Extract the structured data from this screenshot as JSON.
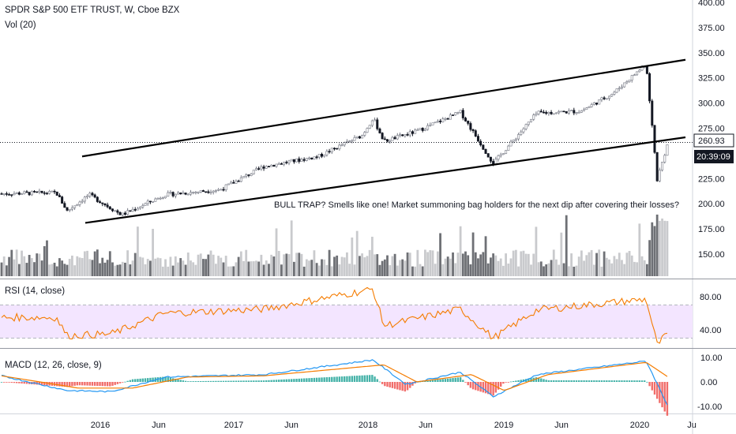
{
  "header": {
    "symbol_line": "SPDR S&P 500 ETF TRUST, W, Cboe BZX",
    "volume_label": "Vol (20)"
  },
  "annotation": "BULL TRAP? Smells like one! Market summoning bag holders for the next dip after covering their losses?",
  "price_tags": {
    "last_price": "260.93",
    "countdown": "20:39:09"
  },
  "rsi": {
    "label": "RSI (14, close)",
    "upper_band": 70,
    "lower_band": 30
  },
  "macd": {
    "label": "MACD (12, 26, close, 9)"
  },
  "colors": {
    "price_up": "#787b86",
    "price_down": "#131722",
    "channel": "#000000",
    "rsi_line": "#f57c00",
    "rsi_band_fill": "#f3e5ff",
    "macd_line": "#2196f3",
    "signal_line": "#f57c00",
    "hist_pos": "#26a69a",
    "hist_neg": "#ef5350",
    "volume_dark": "#6e7075",
    "volume_light": "#c9cacd"
  },
  "chart_data": {
    "type": "candlestick",
    "x_ticks": [
      "2016",
      "Jun",
      "2017",
      "Jun",
      "2018",
      "Jun",
      "2019",
      "Jun",
      "2020",
      "Ju"
    ],
    "price_axis": {
      "ticks": [
        "400.00",
        "375.00",
        "350.00",
        "325.00",
        "300.00",
        "275.00",
        "250.00",
        "225.00",
        "200.00",
        "175.00",
        "150.00"
      ],
      "ylim": [
        125,
        400
      ]
    },
    "horizontal_line": 260.93,
    "channel": {
      "upper": [
        [
          "2016-01",
          247
        ],
        [
          "2020-04",
          343
        ]
      ],
      "lower": [
        [
          "2016-01",
          181
        ],
        [
          "2020-04",
          266
        ]
      ]
    },
    "price_path": [
      [
        "2015-03",
        210
      ],
      [
        "2015-08",
        211
      ],
      [
        "2015-09",
        193
      ],
      [
        "2015-11",
        209
      ],
      [
        "2016-02",
        189
      ],
      [
        "2016-06",
        209
      ],
      [
        "2016-11",
        214
      ],
      [
        "2017-03",
        237
      ],
      [
        "2017-08",
        247
      ],
      [
        "2017-12",
        268
      ],
      [
        "2018-01",
        285
      ],
      [
        "2018-02",
        262
      ],
      [
        "2018-05",
        272
      ],
      [
        "2018-09",
        291
      ],
      [
        "2018-12",
        240
      ],
      [
        "2019-04",
        290
      ],
      [
        "2019-08",
        292
      ],
      [
        "2019-11",
        310
      ],
      [
        "2020-02",
        339
      ],
      [
        "2020-03",
        224
      ],
      [
        "2020-04",
        261
      ]
    ],
    "rsi_axis": {
      "ticks": [
        "80.00",
        "40.00"
      ],
      "ylim": [
        10,
        95
      ]
    },
    "rsi_path": [
      [
        "2015-03",
        55
      ],
      [
        "2015-08",
        55
      ],
      [
        "2015-09",
        33
      ],
      [
        "2016-01",
        35
      ],
      [
        "2016-06",
        60
      ],
      [
        "2017-03",
        65
      ],
      [
        "2018-01",
        89
      ],
      [
        "2018-02",
        45
      ],
      [
        "2018-09",
        65
      ],
      [
        "2018-12",
        30
      ],
      [
        "2019-04",
        64
      ],
      [
        "2020-02",
        77
      ],
      [
        "2020-03",
        22
      ],
      [
        "2020-04",
        36
      ]
    ],
    "macd_axis": {
      "ticks": [
        "10.00",
        "0.00",
        "-10.00"
      ],
      "ylim": [
        -12,
        12
      ]
    },
    "macd_path": [
      [
        "2015-03",
        2.5
      ],
      [
        "2015-09",
        -3.5
      ],
      [
        "2016-01",
        -4
      ],
      [
        "2016-06",
        2
      ],
      [
        "2017-03",
        3
      ],
      [
        "2018-01",
        9
      ],
      [
        "2018-04",
        -1
      ],
      [
        "2018-09",
        4
      ],
      [
        "2018-12",
        -6
      ],
      [
        "2019-04",
        3
      ],
      [
        "2020-02",
        8.5
      ],
      [
        "2020-04",
        -10
      ]
    ],
    "signal_path": [
      [
        "2015-03",
        2.5
      ],
      [
        "2015-10",
        -2.5
      ],
      [
        "2016-03",
        -2.5
      ],
      [
        "2016-08",
        2
      ],
      [
        "2017-03",
        2.5
      ],
      [
        "2018-02",
        7
      ],
      [
        "2018-05",
        0
      ],
      [
        "2018-10",
        3
      ],
      [
        "2019-01",
        -3.5
      ],
      [
        "2019-05",
        3
      ],
      [
        "2020-02",
        8
      ],
      [
        "2020-04",
        2
      ]
    ]
  }
}
